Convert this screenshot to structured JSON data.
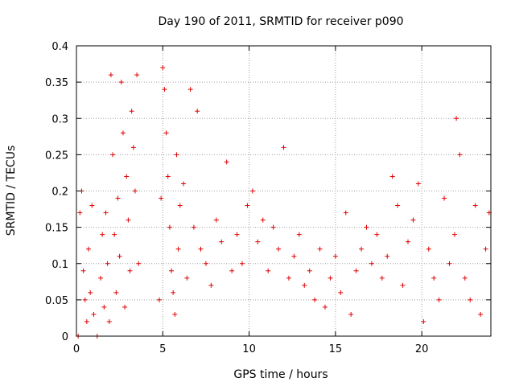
{
  "chart_data": {
    "type": "scatter",
    "title": "Day 190 of 2011, SRMTID for receiver p090",
    "xlabel": "GPS time / hours",
    "ylabel": "SRMTID / TECUs",
    "xlim": [
      0,
      24
    ],
    "ylim": [
      0,
      0.4
    ],
    "xticks": [
      0,
      5,
      10,
      15,
      20
    ],
    "xtick_labels": [
      "0",
      "5",
      "10",
      "15",
      "20"
    ],
    "yticks": [
      0,
      0.05,
      0.1,
      0.15,
      0.2,
      0.25,
      0.3,
      0.35,
      0.4
    ],
    "ytick_labels": [
      "0",
      "0.05",
      "0.1",
      "0.15",
      "0.2",
      "0.25",
      "0.3",
      "0.35",
      "0.4"
    ],
    "grid": true,
    "marker": "+",
    "color": "#e00000",
    "series": [
      {
        "name": "SRMTID",
        "x": [
          0.1,
          0.2,
          0.3,
          0.4,
          0.5,
          0.6,
          0.7,
          0.8,
          0.9,
          1.0,
          1.2,
          1.4,
          1.5,
          1.6,
          1.7,
          1.8,
          1.9,
          2.0,
          2.1,
          2.2,
          2.3,
          2.4,
          2.5,
          2.6,
          2.7,
          2.8,
          2.9,
          3.0,
          3.1,
          3.2,
          3.3,
          3.4,
          3.5,
          3.6,
          4.8,
          4.9,
          5.0,
          5.1,
          5.2,
          5.3,
          5.4,
          5.5,
          5.6,
          5.7,
          5.8,
          5.9,
          6.0,
          6.2,
          6.4,
          6.6,
          6.8,
          7.0,
          7.2,
          7.5,
          7.8,
          8.1,
          8.4,
          8.7,
          9.0,
          9.3,
          9.6,
          9.9,
          10.2,
          10.5,
          10.8,
          11.1,
          11.4,
          11.7,
          12.0,
          12.3,
          12.6,
          12.9,
          13.2,
          13.5,
          13.8,
          14.1,
          14.4,
          14.7,
          15.0,
          15.3,
          15.6,
          15.9,
          16.2,
          16.5,
          16.8,
          17.1,
          17.4,
          17.7,
          18.0,
          18.3,
          18.6,
          18.9,
          19.2,
          19.5,
          19.8,
          20.1,
          20.4,
          20.7,
          21.0,
          21.3,
          21.6,
          21.9,
          22.0,
          22.2,
          22.5,
          22.8,
          23.1,
          23.4,
          23.7,
          23.9
        ],
        "y": [
          0.0,
          0.17,
          0.2,
          0.09,
          0.05,
          0.02,
          0.12,
          0.06,
          0.18,
          0.03,
          0.0,
          0.08,
          0.14,
          0.04,
          0.17,
          0.1,
          0.02,
          0.36,
          0.25,
          0.14,
          0.06,
          0.19,
          0.11,
          0.35,
          0.28,
          0.04,
          0.22,
          0.16,
          0.09,
          0.31,
          0.26,
          0.2,
          0.36,
          0.1,
          0.05,
          0.19,
          0.37,
          0.34,
          0.28,
          0.22,
          0.15,
          0.09,
          0.06,
          0.03,
          0.25,
          0.12,
          0.18,
          0.21,
          0.08,
          0.34,
          0.15,
          0.31,
          0.12,
          0.1,
          0.07,
          0.16,
          0.13,
          0.24,
          0.09,
          0.14,
          0.1,
          0.18,
          0.2,
          0.13,
          0.16,
          0.09,
          0.15,
          0.12,
          0.26,
          0.08,
          0.11,
          0.14,
          0.07,
          0.09,
          0.05,
          0.12,
          0.04,
          0.08,
          0.11,
          0.06,
          0.17,
          0.03,
          0.09,
          0.12,
          0.15,
          0.1,
          0.14,
          0.08,
          0.11,
          0.22,
          0.18,
          0.07,
          0.13,
          0.16,
          0.21,
          0.02,
          0.12,
          0.08,
          0.05,
          0.19,
          0.1,
          0.14,
          0.3,
          0.25,
          0.08,
          0.05,
          0.18,
          0.03,
          0.12,
          0.17
        ]
      }
    ]
  }
}
